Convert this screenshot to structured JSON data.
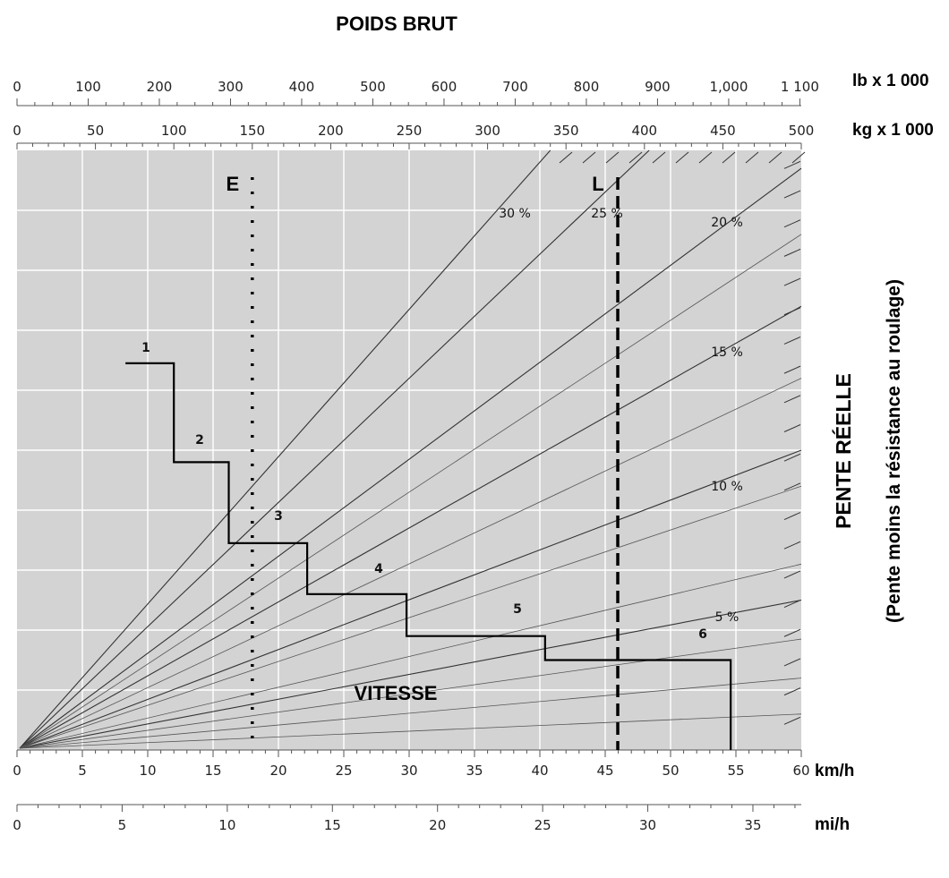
{
  "chart_data": {
    "type": "line",
    "title": "POIDS BRUT",
    "xlabel": "VITESSE",
    "ylabel": "PENTE RÉELLE",
    "ylabel2": "(Pente moins la résistance au roulage)",
    "axes": {
      "top_lb": {
        "unit": "lb x 1 000",
        "ticks": [
          "0",
          "100",
          "200",
          "300",
          "400",
          "500",
          "600",
          "700",
          "800",
          "900",
          "1,000",
          "1 100"
        ],
        "range": [
          0,
          1102
        ]
      },
      "top_kg": {
        "unit": "kg x 1 000",
        "ticks": [
          "0",
          "50",
          "100",
          "150",
          "200",
          "250",
          "300",
          "350",
          "400",
          "450",
          "500"
        ],
        "range": [
          0,
          500
        ]
      },
      "bottom_kmh": {
        "unit": "km/h",
        "ticks": [
          "0",
          "5",
          "10",
          "15",
          "20",
          "25",
          "30",
          "35",
          "40",
          "45",
          "50",
          "55",
          "60"
        ],
        "range": [
          0,
          60
        ]
      },
      "bottom_mih": {
        "unit": "mi/h",
        "ticks": [
          "0",
          "5",
          "10",
          "15",
          "20",
          "25",
          "30",
          "35"
        ],
        "range": [
          0,
          37.3
        ]
      }
    },
    "grid": true,
    "grade_lines": [
      {
        "label": "30 %",
        "weight_kg_at_top": 340
      },
      {
        "label": "25 %",
        "weight_kg_at_top": 403
      },
      {
        "label": "20 %",
        "weight_kg_at_top": 500,
        "grade_at_right": 0.97
      },
      {
        "label": "15 %",
        "weight_kg_at_top": 500,
        "grade_at_right": 0.74
      },
      {
        "label": "10 %",
        "weight_kg_at_top": 500,
        "grade_at_right": 0.5
      },
      {
        "label": "5 %",
        "weight_kg_at_top": 500,
        "grade_at_right": 0.25
      }
    ],
    "gear_steps": [
      {
        "label": "1",
        "speed_start_kmh": 8.3,
        "speed_end_kmh": 12.0,
        "grade": 0.645
      },
      {
        "label": "2",
        "speed_start_kmh": 12.0,
        "speed_end_kmh": 16.2,
        "grade": 0.48
      },
      {
        "label": "3",
        "speed_start_kmh": 16.2,
        "speed_end_kmh": 22.2,
        "grade": 0.345
      },
      {
        "label": "4",
        "speed_start_kmh": 22.2,
        "speed_end_kmh": 29.8,
        "grade": 0.26
      },
      {
        "label": "5",
        "speed_start_kmh": 29.8,
        "speed_end_kmh": 40.4,
        "grade": 0.19
      },
      {
        "label": "6",
        "speed_start_kmh": 40.4,
        "speed_end_kmh": 54.6,
        "grade": 0.15
      }
    ],
    "final_drop_speed_kmh": 54.6,
    "markers": [
      {
        "label": "E",
        "weight_kg": 150,
        "style": "dotted"
      },
      {
        "label": "L",
        "weight_kg": 383,
        "style": "dashed"
      }
    ]
  }
}
